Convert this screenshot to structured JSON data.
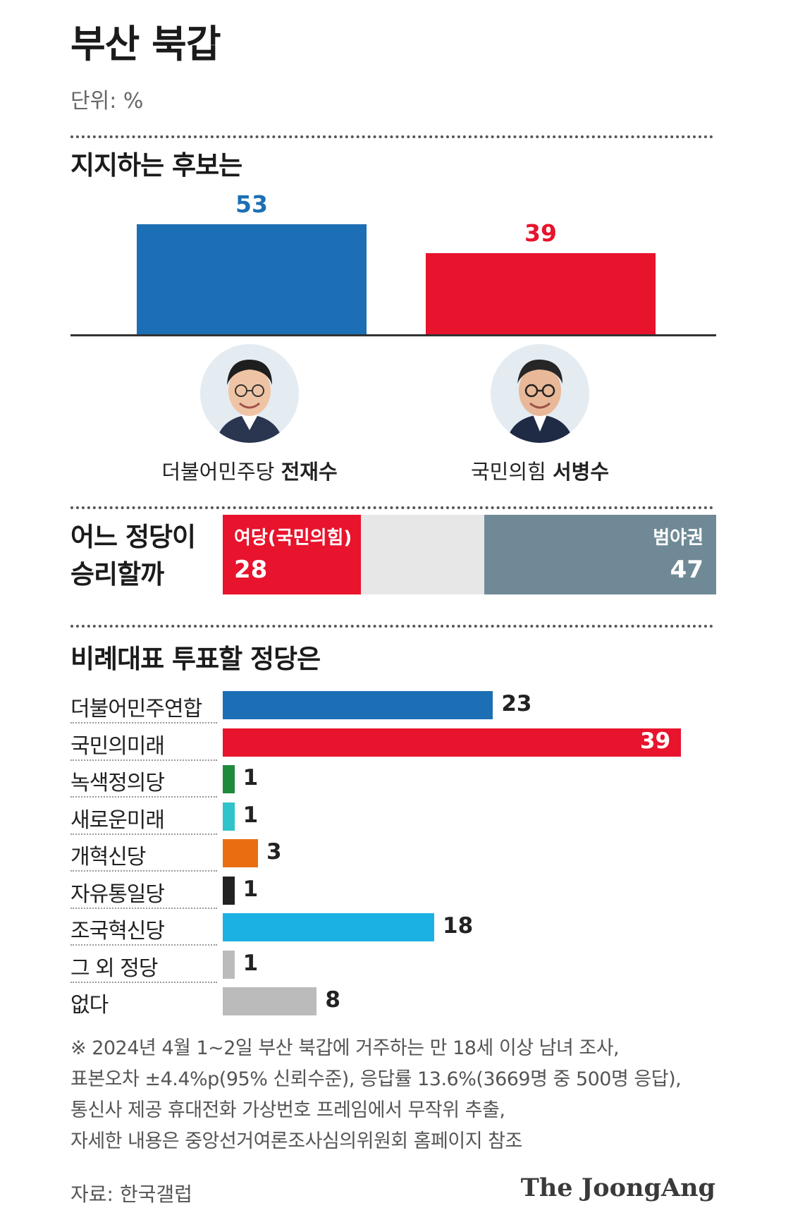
{
  "title": "부산 북갑",
  "unit": "단위: %",
  "chart_data": [
    {
      "type": "bar",
      "title": "지지하는 후보는",
      "categories": [
        "더불어민주당 전재수",
        "국민의힘 서병수"
      ],
      "values": [
        53,
        39
      ],
      "colors": [
        "#1c6fb4",
        "#e8132c"
      ],
      "ylim": [
        0,
        53
      ],
      "candidates": [
        {
          "party": "더불어민주당",
          "name": "전재수",
          "value": "53"
        },
        {
          "party": "국민의힘",
          "name": "서병수",
          "value": "39"
        }
      ]
    },
    {
      "type": "bar",
      "title": "어느 정당이 승리할까",
      "title_lines": [
        "어느 정당이",
        "승리할까"
      ],
      "stacked": true,
      "segments": [
        {
          "label": "여당(국민의힘)",
          "value": 28,
          "value_text": "28",
          "color": "#e8132c"
        },
        {
          "label": "",
          "value": 25,
          "color": "#e7e7e7"
        },
        {
          "label": "범야권",
          "value": 47,
          "value_text": "47",
          "color": "#6f8a96"
        }
      ]
    },
    {
      "type": "bar",
      "orientation": "horizontal",
      "title": "비례대표 투표할 정당은",
      "xlim": [
        0,
        39
      ],
      "categories": [
        "더불어민주연합",
        "국민의미래",
        "녹색정의당",
        "새로운미래",
        "개혁신당",
        "자유통일당",
        "조국혁신당",
        "그 외 정당",
        "없다"
      ],
      "values": [
        23,
        39,
        1,
        1,
        3,
        1,
        18,
        1,
        8
      ],
      "value_labels": [
        "23",
        "39",
        "1",
        "1",
        "3",
        "1",
        "18",
        "1",
        "8"
      ],
      "colors": [
        "#1c6fb4",
        "#e8132c",
        "#1f8a3c",
        "#2ec4c9",
        "#ea6d11",
        "#222222",
        "#1bb1e3",
        "#bbbbbb",
        "#bbbbbb"
      ]
    }
  ],
  "footnote": [
    "※ 2024년 4월 1~2일 부산 북갑에 거주하는 만 18세 이상 남녀 조사,",
    "표본오차 ±4.4%p(95% 신뢰수준), 응답률 13.6%(3669명 중 500명 응답),",
    "통신사 제공 휴대전화 가상번호 프레임에서 무작위 추출,",
    "자세한 내용은 중앙선거여론조사심의위원회 홈페이지 참조"
  ],
  "source": "자료: 한국갤럽",
  "brand": "The JoongAng"
}
